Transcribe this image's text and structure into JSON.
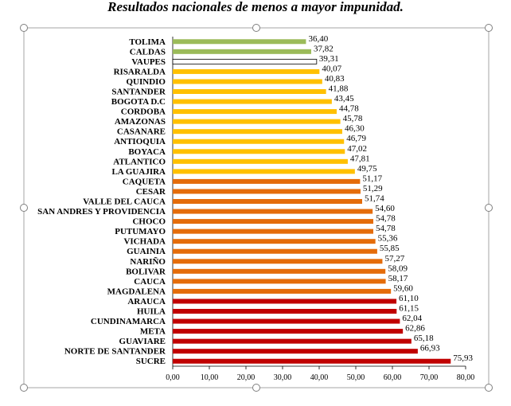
{
  "chart_data": {
    "type": "bar",
    "orientation": "horizontal",
    "title": "Resultados nacionales de menos a mayor impunidad.",
    "xlabel": "",
    "ylabel": "",
    "xlim": [
      0,
      80
    ],
    "x_ticks": [
      "0,00",
      "10,00",
      "20,00",
      "30,00",
      "40,00",
      "50,00",
      "60,00",
      "70,00",
      "80,00"
    ],
    "grid": false,
    "categories": [
      "TOLIMA",
      "CALDAS",
      "VAUPES",
      "RISARALDA",
      "QUINDIO",
      "SANTANDER",
      "BOGOTA D.C",
      "CORDOBA",
      "AMAZONAS",
      "CASANARE",
      "ANTIOQUIA",
      "BOYACA",
      "ATLANTICO",
      "LA GUAJIRA",
      "CAQUETA",
      "CESAR",
      "VALLE DEL CAUCA",
      "SAN ANDRES Y PROVIDENCIA",
      "CHOCO",
      "PUTUMAYO",
      "VICHADA",
      "GUAINIA",
      "NARIÑO",
      "BOLIVAR",
      "CAUCA",
      "MAGDALENA",
      "ARAUCA",
      "HUILA",
      "CUNDINAMARCA",
      "META",
      "GUAVIARE",
      "NORTE DE SANTANDER",
      "SUCRE"
    ],
    "values": [
      36.4,
      37.82,
      39.31,
      40.07,
      40.83,
      41.88,
      43.45,
      44.78,
      45.78,
      46.3,
      46.79,
      47.02,
      47.81,
      49.75,
      51.17,
      51.29,
      51.74,
      54.6,
      54.78,
      54.78,
      55.36,
      55.85,
      57.27,
      58.09,
      58.17,
      59.6,
      61.1,
      61.15,
      62.04,
      62.86,
      65.18,
      66.93,
      75.93
    ],
    "value_labels": [
      "36,40",
      "37,82",
      "39,31",
      "40,07",
      "40,83",
      "41,88",
      "43,45",
      "44,78",
      "45,78",
      "46,30",
      "46,79",
      "47,02",
      "47,81",
      "49,75",
      "51,17",
      "51,29",
      "51,74",
      "54,60",
      "54,78",
      "54,78",
      "55,36",
      "55,85",
      "57,27",
      "58,09",
      "58,17",
      "59,60",
      "61,10",
      "61,15",
      "62,04",
      "62,86",
      "65,18",
      "66,93",
      "75,93"
    ],
    "bar_colors": [
      "#9bbb59",
      "#9bbb59",
      "#ffffff",
      "#ffc000",
      "#ffc000",
      "#ffc000",
      "#ffc000",
      "#ffc000",
      "#ffc000",
      "#ffc000",
      "#ffc000",
      "#ffc000",
      "#ffc000",
      "#ffc000",
      "#e46c0a",
      "#e46c0a",
      "#e46c0a",
      "#e46c0a",
      "#e46c0a",
      "#e46c0a",
      "#e46c0a",
      "#e46c0a",
      "#e46c0a",
      "#e46c0a",
      "#e46c0a",
      "#e46c0a",
      "#c00000",
      "#c00000",
      "#c00000",
      "#c00000",
      "#c00000",
      "#c00000",
      "#c00000"
    ]
  }
}
